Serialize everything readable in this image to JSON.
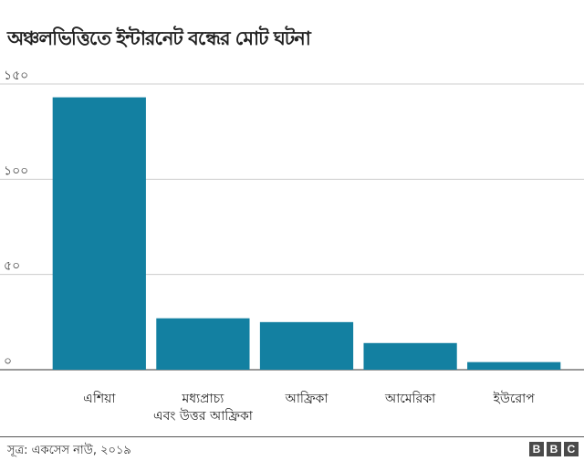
{
  "chart_data": {
    "type": "bar",
    "title": "অঞ্চলভিত্তিতে ইন্টারনেট বন্ধের মোট ঘটনা",
    "categories": [
      [
        "এশিয়া"
      ],
      [
        "মধ্যপ্রাচ্য",
        "এবং উত্তর আফ্রিকা"
      ],
      [
        "আফ্রিকা"
      ],
      [
        "আমেরিকা"
      ],
      [
        "ইউরোপ"
      ]
    ],
    "values": [
      143,
      27,
      25,
      14,
      4
    ],
    "ylim": [
      0,
      150
    ],
    "yticks": [
      0,
      50,
      100,
      150
    ],
    "ytick_labels": [
      "০",
      "৫০",
      "১০০",
      "১৫০"
    ],
    "grid": true,
    "bar_color": "#1380a1"
  },
  "footer": {
    "source": "সূত্র: একসেস নাউ, ২০১৯",
    "logo_letters": [
      "B",
      "B",
      "C"
    ]
  }
}
